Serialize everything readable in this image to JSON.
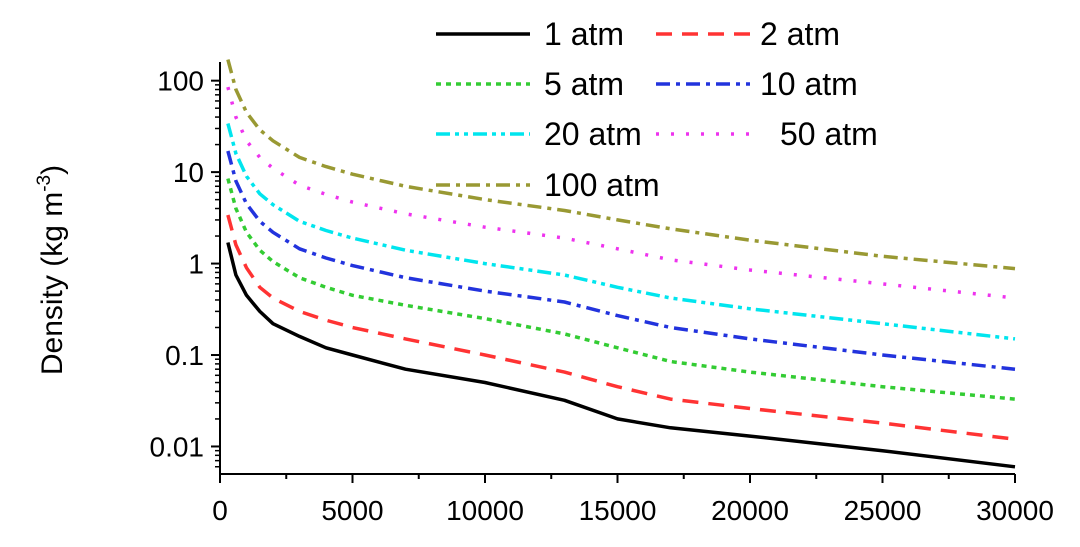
{
  "chart_data": {
    "type": "line",
    "title": "",
    "xlabel": "",
    "ylabel": "Density (kg m",
    "ylabel_sup": "-3",
    "ylabel_close": ")",
    "x_scale": "linear",
    "y_scale": "log",
    "xlim": [
      0,
      30000
    ],
    "ylim": [
      0.005,
      160
    ],
    "x_ticks": [
      "0",
      "5000",
      "10000",
      "15000",
      "20000",
      "25000",
      "30000"
    ],
    "x_tick_values": [
      0,
      5000,
      10000,
      15000,
      20000,
      25000,
      30000
    ],
    "y_ticks": [
      "0.01",
      "0.1",
      "1",
      "10",
      "100"
    ],
    "y_tick_values": [
      0.01,
      0.1,
      1,
      10,
      100
    ],
    "grid": false,
    "legend_position": "top-right, inside plot, 2 columns",
    "series": [
      {
        "name": "1 atm",
        "color": "#000000",
        "dash": "solid",
        "x": [
          300,
          600,
          1000,
          1500,
          2000,
          3000,
          4000,
          5000,
          7000,
          10000,
          13000,
          15000,
          17000,
          20000,
          25000,
          30000
        ],
        "y": [
          1.7,
          0.75,
          0.45,
          0.3,
          0.22,
          0.16,
          0.12,
          0.1,
          0.07,
          0.05,
          0.032,
          0.02,
          0.016,
          0.013,
          0.009,
          0.006
        ]
      },
      {
        "name": "2 atm",
        "color": "#ff3333",
        "dash": "dashed",
        "x": [
          300,
          600,
          1000,
          1500,
          2000,
          3000,
          4000,
          5000,
          7000,
          10000,
          13000,
          15000,
          17000,
          20000,
          25000,
          30000
        ],
        "y": [
          3.4,
          1.6,
          0.9,
          0.55,
          0.42,
          0.3,
          0.24,
          0.2,
          0.15,
          0.1,
          0.065,
          0.045,
          0.033,
          0.026,
          0.018,
          0.012
        ]
      },
      {
        "name": "5 atm",
        "color": "#33cc33",
        "dash": "dotted",
        "x": [
          300,
          600,
          1000,
          1500,
          2000,
          3000,
          4000,
          5000,
          7000,
          10000,
          13000,
          15000,
          17000,
          20000,
          25000,
          30000
        ],
        "y": [
          8.5,
          4,
          2.2,
          1.4,
          1.05,
          0.7,
          0.55,
          0.45,
          0.35,
          0.25,
          0.17,
          0.12,
          0.085,
          0.065,
          0.045,
          0.033
        ]
      },
      {
        "name": "10 atm",
        "color": "#2233dd",
        "dash": "dashdot",
        "x": [
          300,
          600,
          1000,
          1500,
          2000,
          3000,
          4000,
          5000,
          7000,
          10000,
          13000,
          15000,
          17000,
          20000,
          25000,
          30000
        ],
        "y": [
          17,
          8,
          4.5,
          2.9,
          2.2,
          1.45,
          1.15,
          0.95,
          0.7,
          0.5,
          0.38,
          0.27,
          0.2,
          0.15,
          0.1,
          0.07
        ]
      },
      {
        "name": "20 atm",
        "color": "#00e5ee",
        "dash": "dashdotdot",
        "x": [
          300,
          600,
          1000,
          1500,
          2000,
          3000,
          4000,
          5000,
          7000,
          10000,
          13000,
          15000,
          17000,
          20000,
          25000,
          30000
        ],
        "y": [
          34,
          16,
          9,
          5.8,
          4.4,
          2.9,
          2.3,
          1.9,
          1.4,
          1.0,
          0.75,
          0.55,
          0.42,
          0.32,
          0.22,
          0.15
        ]
      },
      {
        "name": "50 atm",
        "color": "#ee33ee",
        "dash": "sparse-dotted",
        "x": [
          300,
          600,
          1000,
          1500,
          2000,
          3000,
          4000,
          5000,
          7000,
          10000,
          13000,
          15000,
          17000,
          20000,
          25000,
          30000
        ],
        "y": [
          85,
          40,
          22,
          14.5,
          11,
          7.2,
          5.7,
          4.7,
          3.5,
          2.5,
          1.9,
          1.45,
          1.1,
          0.85,
          0.6,
          0.42
        ]
      },
      {
        "name": "100 atm",
        "color": "#999933",
        "dash": "dashdot",
        "x": [
          300,
          600,
          1000,
          1500,
          2000,
          3000,
          4000,
          5000,
          7000,
          10000,
          13000,
          15000,
          17000,
          20000,
          25000,
          30000
        ],
        "y": [
          170,
          80,
          45,
          29,
          22,
          14.5,
          11.5,
          9.5,
          7,
          5,
          3.8,
          3.0,
          2.4,
          1.8,
          1.2,
          0.88
        ]
      }
    ]
  }
}
